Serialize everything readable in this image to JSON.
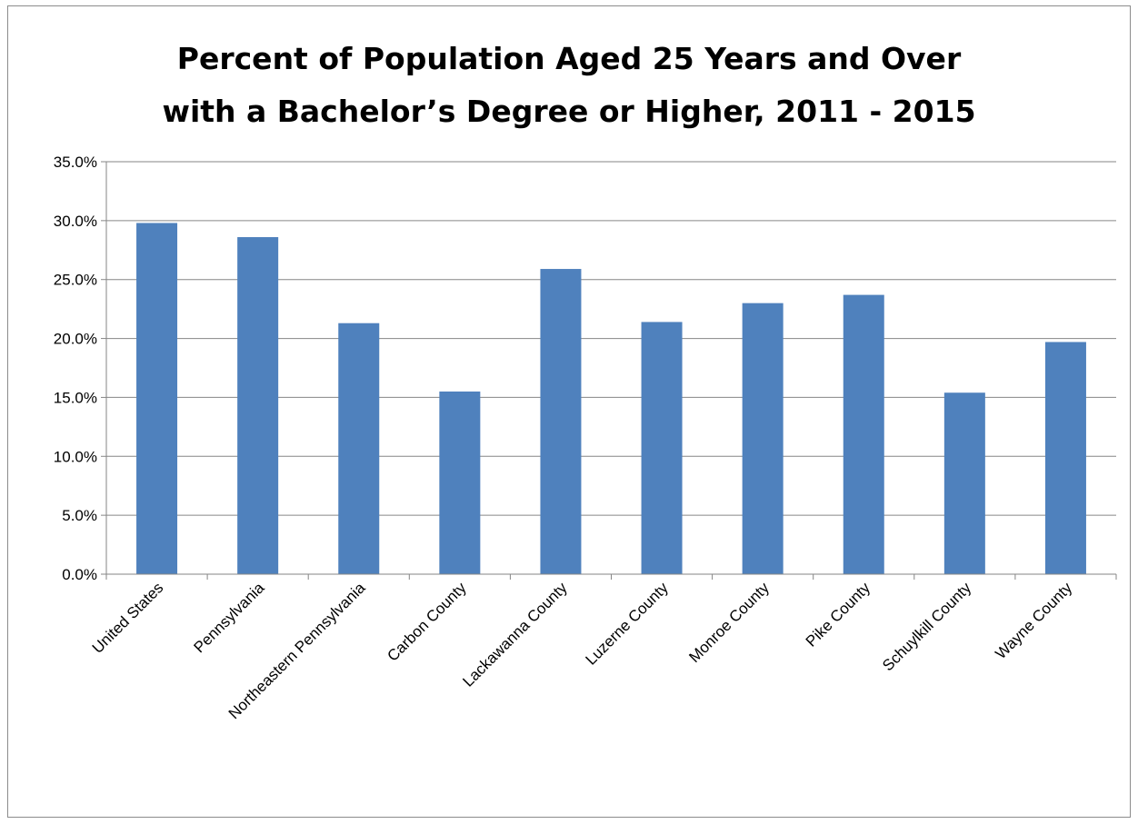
{
  "chart_data": {
    "type": "bar",
    "title": "Percent of Population Aged 25 Years and Over\nwith a Bachelor’s Degree or Higher, 2011 - 2015",
    "xlabel": "",
    "ylabel": "",
    "ylim": [
      0,
      35
    ],
    "y_ticks": [
      "0.0%",
      "5.0%",
      "10.0%",
      "15.0%",
      "20.0%",
      "25.0%",
      "30.0%",
      "35.0%"
    ],
    "y_tick_values": [
      0,
      5,
      10,
      15,
      20,
      25,
      30,
      35
    ],
    "grid": true,
    "legend": "none",
    "bar_color": "#4f81bd",
    "categories": [
      "United States",
      "Pennsylvania",
      "Northeastern Pennsylvania",
      "Carbon County",
      "Lackawanna County",
      "Luzerne County",
      "Monroe County",
      "Pike County",
      "Schuylkill County",
      "Wayne County"
    ],
    "values": [
      29.8,
      28.6,
      21.3,
      15.5,
      25.9,
      21.4,
      23.0,
      23.7,
      15.4,
      19.7
    ]
  }
}
